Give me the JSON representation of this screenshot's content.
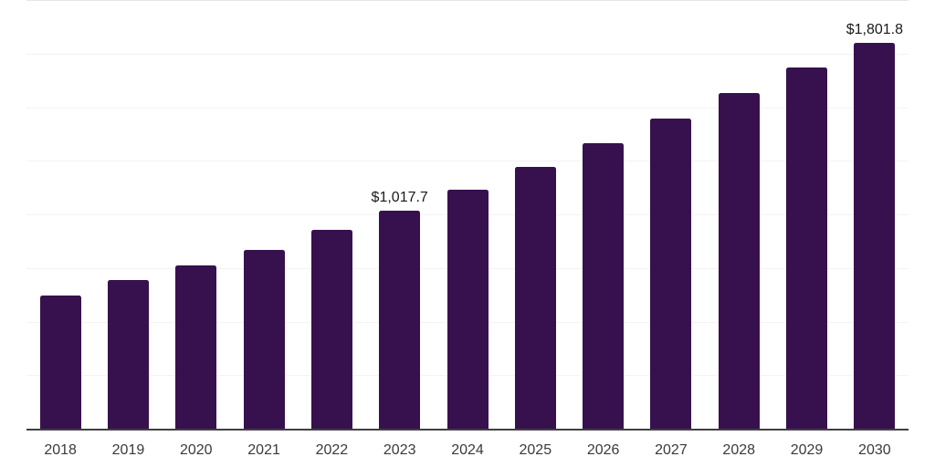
{
  "chart_data": {
    "type": "bar",
    "title": "",
    "xlabel": "",
    "ylabel": "",
    "categories": [
      "2018",
      "2019",
      "2020",
      "2021",
      "2022",
      "2023",
      "2024",
      "2025",
      "2026",
      "2027",
      "2028",
      "2029",
      "2030"
    ],
    "values": [
      623,
      692,
      760,
      836,
      926,
      1017.7,
      1117,
      1223,
      1330,
      1445,
      1564,
      1683,
      1801.8
    ],
    "value_labels": [
      "",
      "",
      "",
      "",
      "",
      "$1,017.7",
      "",
      "",
      "",
      "",
      "",
      "",
      "$1,801.8"
    ],
    "ylim": [
      0,
      2000
    ],
    "gridline_interval": 250,
    "grid": true,
    "legend_position": "none"
  },
  "colors": {
    "bar": "#37114E",
    "gridline": "#f3f3f3",
    "top_border": "#e6e6e6",
    "axis_line": "#404040",
    "value_label_text": "#1a1a1a",
    "tick_label_text": "#3a3a3a",
    "background": "#ffffff"
  }
}
